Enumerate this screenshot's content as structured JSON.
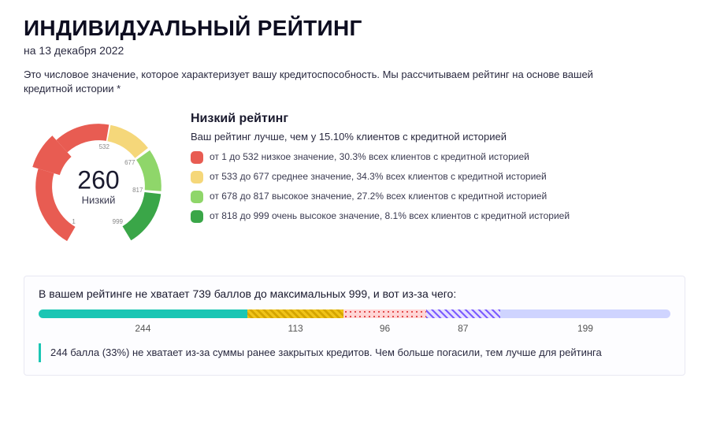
{
  "colors": {
    "low": "#e85c52",
    "mid": "#f5d77a",
    "high": "#8fd66a",
    "vhigh": "#3aa648",
    "teal": "#1bc6b4",
    "lav": "#cfd4ff",
    "text": "#1a1a2e"
  },
  "header": {
    "title": "ИНДИВИДУАЛЬНЫЙ РЕЙТИНГ",
    "date_line": "на 13 декабря 2022",
    "description": "Это числовое значение, которое характеризует вашу кредитоспособность. Мы рассчитываем рейтинг на основе вашей кредитной истории *"
  },
  "gauge": {
    "score": "260",
    "score_label": "Низкий",
    "min": 1,
    "max": 999,
    "ticks": [
      "1",
      "532",
      "677",
      "817",
      "999"
    ],
    "segments": [
      {
        "from": 1,
        "to": 532,
        "color": "#e85c52"
      },
      {
        "from": 533,
        "to": 677,
        "color": "#f5d77a"
      },
      {
        "from": 678,
        "to": 817,
        "color": "#8fd66a"
      },
      {
        "from": 818,
        "to": 999,
        "color": "#3aa648"
      }
    ]
  },
  "legend": {
    "title": "Низкий рейтинг",
    "subtitle": "Ваш рейтинг лучше, чем у 15.10% клиентов с кредитной историей",
    "items": [
      {
        "color": "#e85c52",
        "text": "от 1 до 532 низкое значение, 30.3% всех клиентов с кредитной историей"
      },
      {
        "color": "#f5d77a",
        "text": "от 533 до 677 среднее значение, 34.3% всех клиентов с кредитной историей"
      },
      {
        "color": "#8fd66a",
        "text": "от 678 до 817 высокое значение, 27.2% всех клиентов с кредитной историей"
      },
      {
        "color": "#3aa648",
        "text": "от 818 до 999 очень высокое значение, 8.1% всех клиентов с кредитной историей"
      }
    ]
  },
  "breakdown": {
    "title": "В вашем рейтинге не хватает 739 баллов до максимальных 999, и вот из-за чего:",
    "segments": [
      {
        "value": 244,
        "fill_type": "solid",
        "color": "#1bc6b4"
      },
      {
        "value": 113,
        "fill_type": "diag_yellow"
      },
      {
        "value": 96,
        "fill_type": "dots_red"
      },
      {
        "value": 87,
        "fill_type": "diag_purple"
      },
      {
        "value": 199,
        "fill_type": "solid",
        "color": "#cfd4ff"
      }
    ],
    "explain": "244 балла (33%) не хватает из-за суммы ранее закрытых кредитов. Чем больше погасили, тем лучше для рейтинга"
  }
}
